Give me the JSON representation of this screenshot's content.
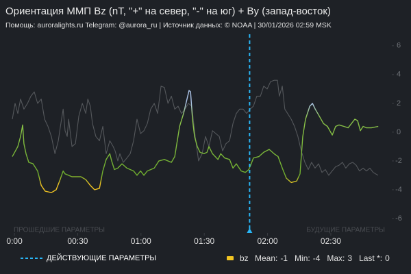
{
  "chart_data": {
    "type": "line",
    "title": "Ориентация ММП Bz (nT, \"+\" на север, \"-\" на юг) + By (запад-восток)",
    "subtitle": "Помощь: auroralights.ru Telegram: @aurora_ru | Источник данных:  © NOAA | 30/01/2026 02:59 MSK",
    "xlim": [
      -1,
      176
    ],
    "ylim": [
      -7,
      6.8
    ],
    "xticks": [
      {
        "value": 0,
        "label": "0:00"
      },
      {
        "value": 30,
        "label": "00:30"
      },
      {
        "value": 60,
        "label": "01:00"
      },
      {
        "value": 90,
        "label": "01:30"
      },
      {
        "value": 120,
        "label": "02:00"
      },
      {
        "value": 150,
        "label": "02:30"
      }
    ],
    "yticks": [
      -6,
      -4,
      -2,
      0,
      2,
      4,
      6
    ],
    "grid": false,
    "past_label": "ПРОШЕДШИЕ ПАРАМЕТРЫ",
    "future_label": "БУДУЩИЕ ПАРАМЕТРЫ",
    "now": {
      "x": 111.5,
      "label": "ДЕЙСТВУЮЩИЕ ПАРАМЕТРЫ",
      "color": "#29b6f6"
    },
    "series": [
      {
        "color": "#55585c",
        "x": [
          -1.0,
          0.3,
          1.6,
          2.9,
          4.5,
          6.2,
          7.8,
          9.4,
          11.0,
          12.7,
          14.3,
          15.9,
          17.5,
          19.2,
          20.8,
          21.8,
          23.1,
          24.0,
          25.0,
          25.7,
          27.3,
          28.9,
          30.5,
          32.2,
          33.8,
          34.8,
          36.0,
          37.0,
          38.6,
          40.3,
          41.9,
          43.5,
          45.2,
          46.8,
          47.7,
          49.0,
          50.0,
          51.6,
          53.3,
          54.9,
          56.5,
          58.1,
          59.8,
          61.4,
          63.0,
          64.6,
          66.3,
          67.9,
          69.5,
          71.1,
          72.8,
          74.4,
          76.0,
          77.6,
          79.2,
          80.9,
          82.5,
          84.1,
          85.7,
          87.3,
          89.0,
          90.6,
          92.2,
          93.9,
          95.5,
          97.1,
          98.7,
          100.3,
          102.0,
          103.6,
          105.2,
          106.8,
          108.4,
          110.1,
          111.7,
          113.3,
          114.9,
          116.6,
          118.2,
          119.8,
          121.4,
          123.1,
          124.7,
          125.6,
          127.0,
          128.2,
          129.5,
          131.2,
          132.8,
          134.4,
          136.0,
          137.7,
          139.3,
          140.9,
          142.5,
          144.2,
          145.8,
          147.4,
          149.0,
          150.6,
          152.3,
          153.9,
          155.5,
          157.1,
          158.8,
          160.4,
          162.0,
          163.6,
          165.3,
          166.9,
          168.5,
          170.1,
          172.4
        ],
        "values": [
          0.9,
          2.0,
          1.3,
          2.3,
          1.6,
          2.0,
          2.5,
          2.8,
          2.0,
          2.3,
          0.9,
          0.4,
          -0.3,
          -1.5,
          -0.6,
          0.4,
          1.6,
          0.1,
          -0.3,
          0.9,
          -1.0,
          -0.8,
          1.1,
          2.0,
          1.3,
          2.3,
          1.8,
          0.6,
          -0.3,
          -0.6,
          0.4,
          -1.5,
          -0.6,
          -1.0,
          -1.3,
          -2.0,
          -1.5,
          -2.1,
          -1.8,
          -1.5,
          -0.6,
          0.9,
          -0.1,
          0.1,
          0.6,
          1.6,
          2.0,
          1.3,
          3.2,
          3.1,
          2.0,
          2.5,
          1.6,
          1.8,
          1.3,
          1.6,
          2.0,
          1.8,
          -0.3,
          -2.0,
          -1.5,
          -0.3,
          -1.0,
          0.1,
          -0.1,
          -0.3,
          -1.3,
          -0.8,
          -0.6,
          0.6,
          1.3,
          1.6,
          1.6,
          1.3,
          1.6,
          1.8,
          2.5,
          2.5,
          3.2,
          3.0,
          3.5,
          3.6,
          3.6,
          2.5,
          3.2,
          1.6,
          1.3,
          0.9,
          0.4,
          -0.3,
          -1.3,
          -2.1,
          -2.6,
          -2.1,
          -2.5,
          -2.2,
          -2.8,
          -2.6,
          -3.0,
          -2.7,
          -2.4,
          -2.3,
          -2.1,
          -2.5,
          -2.2,
          -2.1,
          -2.3,
          -2.7,
          -2.5,
          -2.7,
          -2.5,
          -2.8,
          -3.0
        ]
      },
      {
        "name": "bz",
        "color": "#f2c522",
        "gradient": [
          {
            "value": 2,
            "color": "#aec6ea"
          },
          {
            "value": 1,
            "color": "#8bc34a"
          },
          {
            "value": -3,
            "color": "#6fae2e"
          },
          {
            "value": -3.6,
            "color": "#f2c522"
          }
        ],
        "x": [
          -1.0,
          1.6,
          2.9,
          3.9,
          4.5,
          5.5,
          6.8,
          8.8,
          11.0,
          12.7,
          14.6,
          17.5,
          19.8,
          21.4,
          23.1,
          24.0,
          27.3,
          31.5,
          33.8,
          36.0,
          38.0,
          40.3,
          41.9,
          43.5,
          45.2,
          46.1,
          47.4,
          49.0,
          51.0,
          53.3,
          56.5,
          58.1,
          59.8,
          61.4,
          63.0,
          66.3,
          68.5,
          71.1,
          74.4,
          76.0,
          78.3,
          80.2,
          81.5,
          82.8,
          83.5,
          84.4,
          85.4,
          86.7,
          88.0,
          89.9,
          91.3,
          92.2,
          93.9,
          96.5,
          97.8,
          99.7,
          102.0,
          103.6,
          105.2,
          107.5,
          109.5,
          111.1,
          112.0,
          113.3,
          115.9,
          118.2,
          120.8,
          123.1,
          125.0,
          127.0,
          128.9,
          131.2,
          133.8,
          135.4,
          136.7,
          138.0,
          140.0,
          141.3,
          142.6,
          144.2,
          146.5,
          148.4,
          150.7,
          152.3,
          153.9,
          156.2,
          158.2,
          159.8,
          161.4,
          162.7,
          164.0,
          165.3,
          166.9,
          169.2,
          172.5
        ],
        "values": [
          -1.7,
          -1.0,
          -0.3,
          0.5,
          -0.8,
          -1.5,
          -2.1,
          -2.2,
          -2.7,
          -3.7,
          -4.1,
          -4.2,
          -4.0,
          -3.4,
          -2.7,
          -2.9,
          -3.1,
          -3.1,
          -3.3,
          -3.7,
          -4.0,
          -3.9,
          -2.7,
          -1.9,
          -1.5,
          -2.0,
          -2.6,
          -2.5,
          -2.2,
          -2.5,
          -2.7,
          -3.0,
          -2.7,
          -3.0,
          -2.7,
          -2.5,
          -2.0,
          -1.9,
          -2.1,
          -1.7,
          0.4,
          1.3,
          2.1,
          2.9,
          2.8,
          0.9,
          -0.3,
          -1.0,
          -1.4,
          -1.5,
          -1.4,
          -1.0,
          -1.5,
          -1.9,
          -1.5,
          -1.8,
          -1.9,
          -2.5,
          -2.2,
          -2.7,
          -2.8,
          -2.6,
          -2.3,
          -1.8,
          -1.7,
          -1.4,
          -1.2,
          -1.5,
          -1.7,
          -2.5,
          -3.2,
          -3.5,
          -3.4,
          -2.9,
          -0.3,
          0.9,
          1.8,
          2.0,
          1.6,
          1.2,
          0.6,
          0.4,
          -0.2,
          0.4,
          0.5,
          0.4,
          0.3,
          0.6,
          0.9,
          0.8,
          0.1,
          0.4,
          0.3,
          0.3,
          0.4
        ]
      }
    ],
    "stats": [
      {
        "label": "Mean:",
        "value": -1
      },
      {
        "label": "Min:",
        "value": -4
      },
      {
        "label": "Max:",
        "value": 3
      },
      {
        "label": "Last *:",
        "value": 0
      }
    ]
  }
}
